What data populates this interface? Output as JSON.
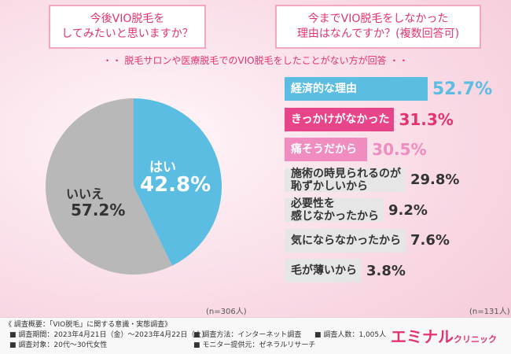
{
  "questions": {
    "left": [
      "今後VIO脱毛を",
      "してみたいと思いますか？"
    ],
    "right": [
      "今までVIO脱毛をしなかった",
      "理由はなんですか？(複数回答可)"
    ]
  },
  "subtitle": "・・ 脱毛サロンや医療脱毛でのVIO脱毛をしたことがない方が回答 ・・",
  "colors": {
    "accent": "#e4336f",
    "blue": "#5bbde2",
    "gray": "#b8b8b8",
    "pink_dark": "#e8448a",
    "pink_light": "#f08cc0",
    "gray_bar": "#e6e6e6"
  },
  "chart_data": [
    {
      "type": "pie",
      "title": "今後VIO脱毛をしてみたいと思いますか？",
      "slices": [
        {
          "label": "はい",
          "value": 42.8,
          "display": "42.8%"
        },
        {
          "label": "いいえ",
          "value": 57.2,
          "display": "57.2%"
        }
      ],
      "note": "(n=306人)"
    },
    {
      "type": "bar",
      "orientation": "horizontal",
      "title": "今までVIO脱毛をしなかった理由はなんですか？(複数回答可)",
      "xlim": [
        0,
        100
      ],
      "categories": [
        "経済的な理由",
        "きっかけがなかった",
        "痛そうだから",
        "施術の時見られるのが恥ずかしいから",
        "必要性を感じなかったから",
        "気にならなかったから",
        "毛が薄いから"
      ],
      "label_lines": [
        [
          "経済的な理由"
        ],
        [
          "きっかけがなかった"
        ],
        [
          "痛そうだから"
        ],
        [
          "施術の時見られるのが",
          "恥ずかしいから"
        ],
        [
          "必要性を",
          "感じなかったから"
        ],
        [
          "気にならなかったから"
        ],
        [
          "毛が薄いから"
        ]
      ],
      "values": [
        52.7,
        31.3,
        30.5,
        29.8,
        9.2,
        7.6,
        3.8
      ],
      "display": [
        "52.7%",
        "31.3%",
        "30.5%",
        "29.8%",
        "9.2%",
        "7.6%",
        "3.8%"
      ],
      "note": "(n=131人)"
    }
  ],
  "footer": {
    "title": "《 調査概要：「VIO脱毛」に関する意識・実態調査》",
    "period": "■ 調査期間：2023年4月21日（金）〜2023年4月22日（土）",
    "target": "■ 調査対象：20代〜30代女性",
    "method": "■ 調査方法：インターネット調査",
    "provider": "■ モニター提供元：ゼネラルリサーチ",
    "count": "■ 調査人数：1,005人"
  },
  "logo": {
    "main": "エミナル",
    "sub": "クリニック"
  }
}
